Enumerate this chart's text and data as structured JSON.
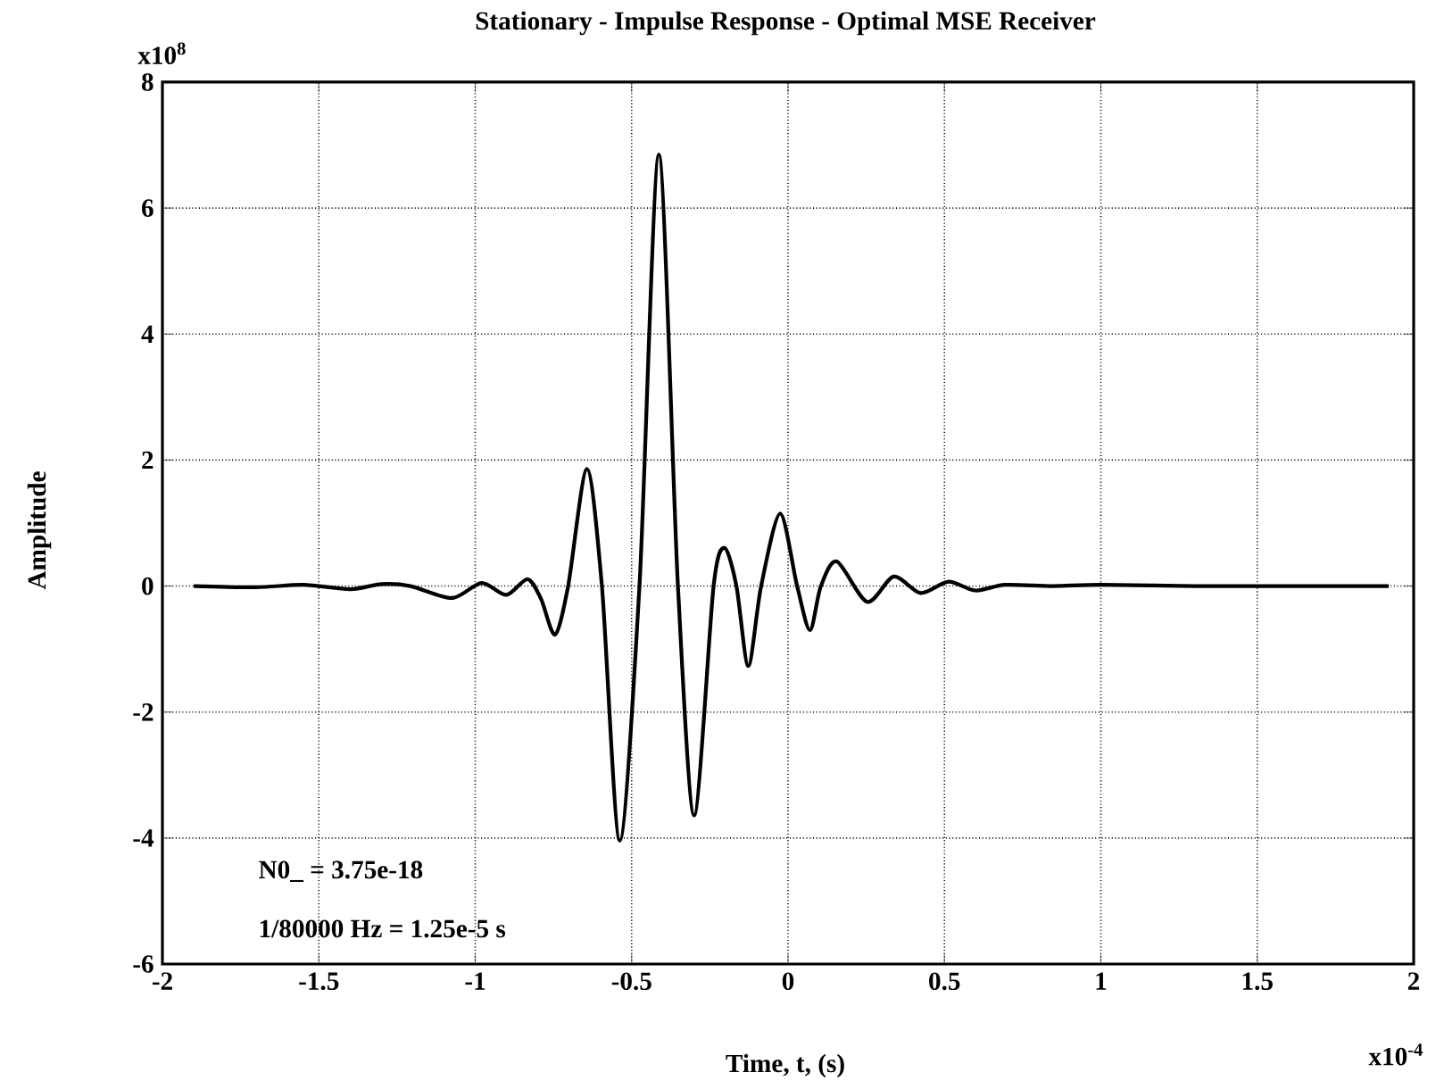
{
  "chart_data": {
    "type": "line",
    "title": "Stationary - Impulse Response - Optimal MSE Receiver",
    "xlabel": "Time, t, (s)",
    "ylabel": "Amplitude",
    "xlim": [
      -2,
      2
    ],
    "ylim": [
      -6,
      8
    ],
    "xticks": [
      -2,
      -1.5,
      -1,
      -0.5,
      0,
      0.5,
      1,
      1.5,
      2
    ],
    "yticks": [
      -6,
      -4,
      -2,
      0,
      2,
      4,
      6,
      8
    ],
    "grid": true,
    "line_style": "solid",
    "annotations": [
      "N0_ = 3.75e-18",
      "1/80000 Hz = 1.25e-5 s",
      "x10$^{8}$",
      "x10$^{-4}$"
    ],
    "series": [
      {
        "color": "#000000",
        "x": [
          -1.9,
          -1.7,
          -1.55,
          -1.4,
          -1.3,
          -1.207,
          -1.074,
          -0.98,
          -0.9,
          -0.833,
          -0.79,
          -0.745,
          -0.703,
          -0.643,
          -0.595,
          -0.538,
          -0.475,
          -0.413,
          -0.352,
          -0.3,
          -0.238,
          -0.203,
          -0.165,
          -0.127,
          -0.086,
          -0.025,
          0.029,
          0.07,
          0.105,
          0.156,
          0.253,
          0.338,
          0.424,
          0.513,
          0.599,
          0.694,
          0.846,
          1.0,
          1.3,
          1.6,
          1.92
        ],
        "values": [
          0,
          -0.02,
          0.02,
          -0.05,
          0.03,
          0,
          -0.19,
          0.05,
          -0.14,
          0.11,
          -0.2,
          -0.77,
          0,
          1.86,
          0,
          -4.04,
          0,
          6.85,
          0,
          -3.64,
          0,
          0.61,
          0,
          -1.27,
          0,
          1.15,
          0,
          -0.7,
          0,
          0.39,
          -0.25,
          0.15,
          -0.11,
          0.07,
          -0.07,
          0.02,
          0,
          0.02,
          0,
          0,
          0
        ]
      }
    ]
  }
}
